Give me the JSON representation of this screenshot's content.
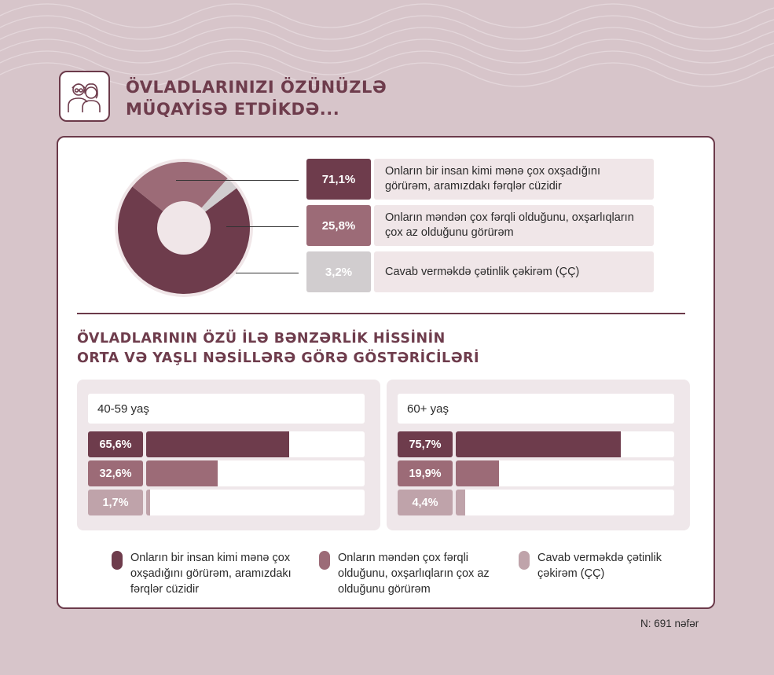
{
  "header": {
    "title_line1": "ÖVLADLARINIZI ÖZÜNÜZLƏ",
    "title_line2": "MÜQAYİSƏ ETDİKDƏ...",
    "icon": "elderly-couple-icon"
  },
  "colors": {
    "dark": "#6e3c4c",
    "mid": "#9c6b77",
    "light": "#bfa3aa",
    "grey": "#d1cdcf"
  },
  "chart_data": [
    {
      "type": "pie",
      "style": "donut",
      "categories": [
        "Onların bir insan kimi mənə çox oxşadığını görürəm, aramızdakı fərqlər cüzidir",
        "Onların məndən çox fərqli olduğunu, oxşarlıqların çox az olduğunu görürəm",
        "Cavab verməkdə çətinlik çəkirəm (ÇÇ)"
      ],
      "values": [
        71.1,
        25.8,
        3.2
      ],
      "labels": [
        "71,1%",
        "25,8%",
        "3,2%"
      ]
    },
    {
      "type": "bar",
      "orientation": "horizontal",
      "title": "40-59 yaş",
      "values": [
        65.6,
        32.6,
        1.7
      ],
      "labels": [
        "65,6%",
        "32,6%",
        "1,7%"
      ],
      "xlim": [
        0,
        100
      ]
    },
    {
      "type": "bar",
      "orientation": "horizontal",
      "title": "60+ yaş",
      "values": [
        75.7,
        19.9,
        4.4
      ],
      "labels": [
        "75,7%",
        "19,9%",
        "4,4%"
      ],
      "xlim": [
        0,
        100
      ]
    }
  ],
  "section": {
    "title_line1": "ÖVLADLARININ ÖZÜ İLƏ BƏNZƏRLİK HİSSİNİN",
    "title_line2": "ORTA VƏ YAŞLI NƏSİLLƏRƏ GÖRƏ GÖSTƏRİCİLƏRİ"
  },
  "legend": [
    {
      "text": "Onların bir insan kimi mənə çox oxşadığını görürəm, aramızdakı fərqlər cüzidir"
    },
    {
      "text": "Onların məndən çox fərqli olduğunu, oxşarlıqların çox az olduğunu görürəm"
    },
    {
      "text": "Cavab verməkdə çətinlik çəkirəm (ÇÇ)"
    }
  ],
  "footnote": "N: 691 nəfər"
}
